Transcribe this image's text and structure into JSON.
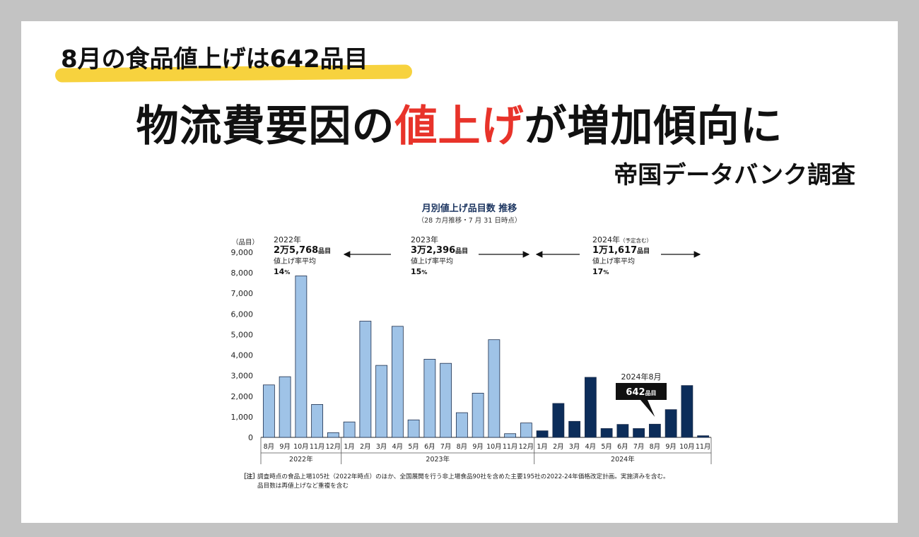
{
  "header": {
    "tag": "8月の食品値上げは642品目",
    "headline_pre": "物流費要因の",
    "headline_red": "値上げ",
    "headline_post": "が増加傾向に",
    "source": "帝国データバンク調査"
  },
  "colors": {
    "bar_light": "#9fc3e7",
    "bar_dark": "#0c2d5a",
    "highlight": "#f7d23e",
    "red": "#e8332a"
  },
  "chart_data": {
    "type": "bar",
    "title": "月別値上げ品目数 推移",
    "subtitle": "（28 カ月推移・7 月 31 日時点）",
    "y_unit": "（品目）",
    "ylim": [
      0,
      9000
    ],
    "yticks": [
      "0",
      "1,000",
      "2,000",
      "3,000",
      "4,000",
      "5,000",
      "6,000",
      "7,000",
      "8,000",
      "9,000"
    ],
    "categories": [
      "8月",
      "9月",
      "10月",
      "11月",
      "12月",
      "1月",
      "2月",
      "3月",
      "4月",
      "5月",
      "6月",
      "7月",
      "8月",
      "9月",
      "10月",
      "11月",
      "12月",
      "1月",
      "2月",
      "3月",
      "4月",
      "5月",
      "6月",
      "7月",
      "8月",
      "9月",
      "10月",
      "11月"
    ],
    "values": [
      2550,
      2950,
      7850,
      1600,
      230,
      750,
      5650,
      3500,
      5400,
      850,
      3800,
      3600,
      1200,
      2150,
      4750,
      180,
      700,
      320,
      1650,
      780,
      2920,
      430,
      630,
      430,
      642,
      1350,
      2520,
      80
    ],
    "year_groups": [
      {
        "label": "2022年",
        "start": 0,
        "end": 4,
        "shade": "light"
      },
      {
        "label": "2023年",
        "start": 5,
        "end": 16,
        "shade": "light"
      },
      {
        "label": "2024年",
        "start": 17,
        "end": 27,
        "shade": "dark"
      }
    ],
    "summaries": [
      {
        "year": "2022年",
        "total": "2万5,768",
        "unit": "品目",
        "rate_label": "値上げ率平均",
        "rate": "14",
        "rate_unit": "%"
      },
      {
        "year": "2023年",
        "total": "3万2,396",
        "unit": "品目",
        "rate_label": "値上げ率平均",
        "rate": "15",
        "rate_unit": "%"
      },
      {
        "year": "2024年",
        "year_note": "（予定含む）",
        "total": "1万1,617",
        "unit": "品目",
        "rate_label": "値上げ率平均",
        "rate": "17",
        "rate_unit": "%"
      }
    ],
    "callout": {
      "label": "2024年8月",
      "value": "642",
      "unit": "品目",
      "index": 24
    },
    "note_prefix": "［注］",
    "note_lines": [
      "調査時点の食品上場105社（2022年時点）のほか、全国展開を行う非上場食品90社を含めた主要195社の2022-24年価格改定計画。実施済みを含む。",
      "品目数は再値上げなど重複を含む"
    ]
  }
}
